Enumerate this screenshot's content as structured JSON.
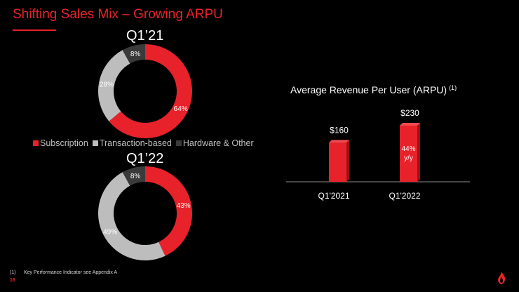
{
  "title": "Shifting Sales Mix – Growing ARPU",
  "colors": {
    "accent": "#e8222a",
    "subscription": "#e8222a",
    "transaction": "#bdbdbd",
    "hardware": "#3a3a3a",
    "background": "#000000"
  },
  "legend": [
    {
      "label": "Subscription",
      "color": "#e8222a"
    },
    {
      "label": "Transaction-based",
      "color": "#bdbdbd"
    },
    {
      "label": "Hardware & Other",
      "color": "#3a3a3a"
    }
  ],
  "chart_data": [
    {
      "type": "pie",
      "title": "Q1’21",
      "slices": [
        {
          "label": "Subscription",
          "value": 64,
          "display": "64%"
        },
        {
          "label": "Transaction-based",
          "value": 28,
          "display": "28%"
        },
        {
          "label": "Hardware & Other",
          "value": 8,
          "display": "8%"
        }
      ]
    },
    {
      "type": "pie",
      "title": "Q1’22",
      "slices": [
        {
          "label": "Subscription",
          "value": 43,
          "display": "43%"
        },
        {
          "label": "Transaction-based",
          "value": 49,
          "display": "49%"
        },
        {
          "label": "Hardware & Other",
          "value": 8,
          "display": "8%"
        }
      ]
    },
    {
      "type": "bar",
      "title": "Average Revenue Per User (ARPU)",
      "title_note": "(1)",
      "categories": [
        "Q1'2021",
        "Q1'2022"
      ],
      "values": [
        160,
        230
      ],
      "value_labels": [
        "$160",
        "$230"
      ],
      "annotation": {
        "category": "Q1'2022",
        "line1": "44%",
        "line2": "y/y"
      },
      "ylim": [
        0,
        260
      ]
    }
  ],
  "footnote": {
    "marker": "(1)",
    "text": "Key Performance Indicator see Appendix A"
  },
  "page_number": "16"
}
